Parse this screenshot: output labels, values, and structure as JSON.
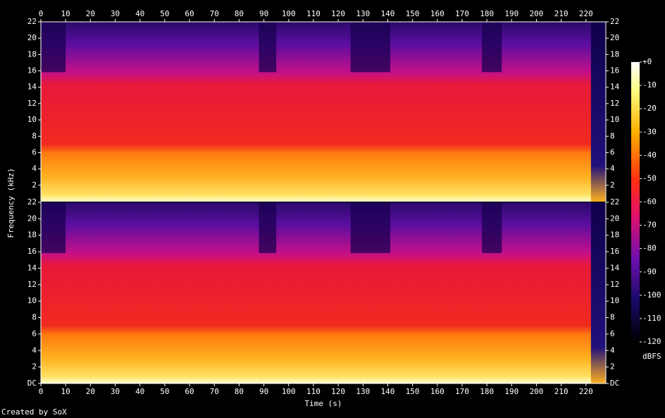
{
  "chart_data": {
    "type": "spectrogram",
    "xlabel": "Time (s)",
    "ylabel": "Frequency (kHz)",
    "xlim": [
      0,
      228
    ],
    "xticks": [
      0,
      10,
      20,
      30,
      40,
      50,
      60,
      70,
      80,
      90,
      100,
      110,
      120,
      130,
      140,
      150,
      160,
      170,
      180,
      190,
      200,
      210,
      220
    ],
    "channels": [
      {
        "ylim": [
          0,
          22
        ],
        "yticks": [
          2,
          4,
          6,
          8,
          10,
          12,
          14,
          16,
          18,
          20,
          22
        ]
      },
      {
        "ylim": [
          0,
          22
        ],
        "yticks": [
          {
            "value": 0,
            "label": "DC"
          },
          2,
          4,
          6,
          8,
          10,
          12,
          14,
          16,
          18,
          20,
          22
        ]
      }
    ],
    "colorbar": {
      "label": "dBFS",
      "lim": [
        -120,
        0
      ],
      "ticks": [
        {
          "value": 0,
          "label": "+0"
        },
        -10,
        -20,
        -30,
        -40,
        -50,
        -60,
        -70,
        -80,
        -90,
        -100,
        -110,
        -120
      ]
    },
    "credit": "Created by SoX"
  }
}
